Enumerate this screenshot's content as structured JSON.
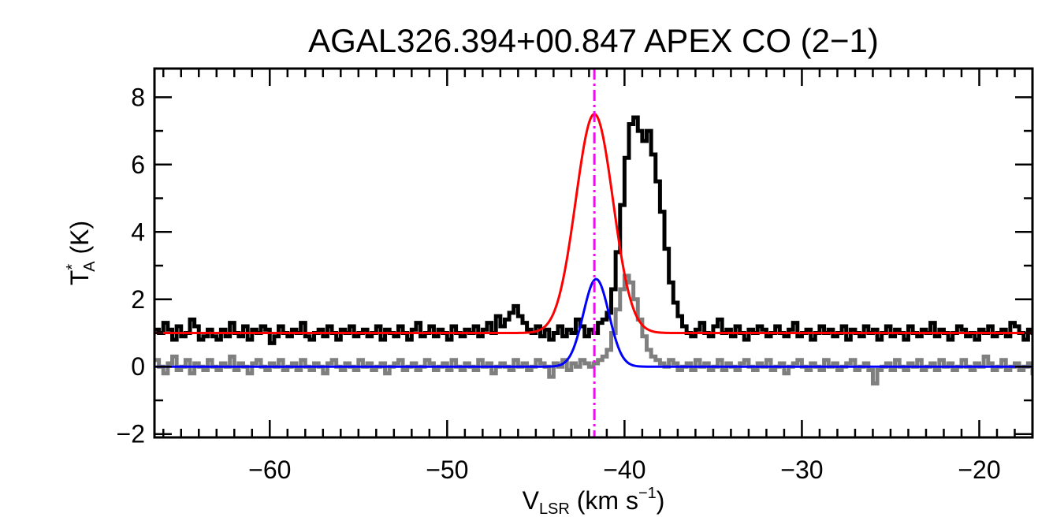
{
  "chart_data": {
    "type": "line",
    "title": "AGAL326.394+00.847  APEX CO (2−1)",
    "xlabel": {
      "main": "V",
      "sub": "LSR",
      "rest": " (km s",
      "sup": "−1",
      "end": ")"
    },
    "ylabel": {
      "main": "T",
      "sup": "*",
      "sub": "A",
      "rest": " (K)"
    },
    "xlim": [
      -66.5,
      -17
    ],
    "ylim": [
      -2.1,
      8.85
    ],
    "x_ticks": [
      -60,
      -50,
      -40,
      -30,
      -20
    ],
    "x_tick_labels": [
      "−60",
      "−50",
      "−40",
      "−30",
      "−20"
    ],
    "y_ticks": [
      -2,
      0,
      2,
      4,
      6,
      8
    ],
    "y_tick_labels": [
      "−2",
      "0",
      "2",
      "4",
      "6",
      "8"
    ],
    "x_minor_step": 1,
    "y_minor_step": 1,
    "grid": false,
    "channel_width": 0.25,
    "x_start": -66.5,
    "series": [
      {
        "style": "histogram",
        "color": "#000000",
        "values": [
          1.1,
          1.0,
          1.3,
          1.1,
          0.8,
          1.2,
          0.9,
          1.0,
          1.4,
          1.2,
          0.8,
          0.9,
          1.1,
          0.9,
          0.8,
          1.1,
          0.9,
          1.3,
          1.0,
          0.9,
          1.2,
          0.8,
          1.1,
          1.0,
          1.2,
          1.1,
          0.7,
          0.9,
          1.2,
          1.0,
          0.9,
          1.1,
          1.0,
          1.3,
          0.9,
          0.8,
          1.0,
          1.1,
          0.9,
          1.2,
          1.0,
          0.8,
          1.1,
          1.0,
          1.2,
          0.9,
          1.0,
          1.1,
          0.9,
          1.0,
          1.2,
          0.8,
          1.1,
          1.0,
          0.9,
          1.2,
          1.0,
          0.8,
          1.1,
          1.3,
          0.9,
          1.0,
          1.2,
          0.9,
          1.1,
          1.0,
          0.8,
          1.2,
          1.0,
          0.9,
          1.1,
          1.0,
          1.2,
          0.9,
          1.1,
          1.3,
          1.0,
          1.5,
          1.2,
          1.4,
          1.6,
          1.8,
          1.5,
          1.3,
          1.1,
          1.0,
          1.2,
          0.9,
          1.1,
          0.8,
          1.0,
          1.2,
          0.9,
          1.1,
          1.0,
          1.4,
          1.2,
          0.9,
          1.1,
          1.0,
          1.3,
          1.4,
          1.6,
          2.3,
          3.4,
          4.8,
          6.2,
          7.2,
          7.4,
          7.0,
          6.7,
          7.0,
          6.3,
          5.5,
          4.6,
          3.5,
          2.5,
          1.9,
          1.5,
          1.2,
          1.0,
          0.9,
          1.1,
          1.3,
          1.0,
          0.9,
          1.2,
          1.4,
          1.0,
          1.1,
          0.9,
          1.2,
          1.0,
          0.8,
          1.1,
          1.0,
          1.2,
          1.1,
          0.9,
          1.0,
          1.2,
          1.0,
          0.9,
          1.1,
          1.3,
          0.9,
          1.0,
          1.1,
          0.8,
          1.0,
          1.2,
          1.0,
          1.1,
          0.9,
          1.0,
          1.2,
          0.8,
          1.1,
          1.0,
          0.9,
          1.2,
          1.0,
          1.1,
          0.8,
          1.0,
          1.2,
          0.9,
          1.1,
          1.0,
          0.8,
          1.2,
          1.0,
          0.9,
          1.1,
          1.0,
          1.3,
          0.9,
          1.1,
          1.0,
          0.8,
          1.0,
          1.2,
          1.1,
          0.9,
          1.0,
          0.8,
          1.1,
          1.0,
          1.2,
          0.9,
          1.0,
          1.1,
          0.9,
          1.3,
          1.2,
          1.0,
          0.8,
          1.1,
          1.0,
          0.9,
          1.2,
          1.0,
          0.8
        ]
      },
      {
        "style": "histogram",
        "color": "#7f7f7f",
        "values": [
          0.2,
          0.0,
          -0.2,
          0.1,
          0.3,
          -0.1,
          0.0,
          0.2,
          -0.2,
          0.1,
          0.0,
          -0.1,
          0.2,
          0.0,
          -0.1,
          0.1,
          0.0,
          0.3,
          -0.1,
          0.1,
          0.0,
          -0.2,
          0.1,
          0.2,
          0.0,
          -0.1,
          0.1,
          0.0,
          0.2,
          -0.1,
          0.0,
          0.1,
          -0.1,
          0.2,
          0.0,
          -0.1,
          0.1,
          0.0,
          -0.2,
          0.1,
          0.2,
          0.0,
          -0.1,
          0.1,
          0.0,
          -0.1,
          0.2,
          0.0,
          0.1,
          -0.1,
          0.0,
          0.1,
          -0.2,
          0.0,
          0.1,
          0.2,
          -0.1,
          0.0,
          0.1,
          -0.1,
          0.0,
          0.2,
          0.1,
          -0.1,
          0.0,
          0.1,
          -0.1,
          0.2,
          0.0,
          -0.1,
          0.1,
          0.0,
          -0.1,
          0.2,
          0.0,
          0.1,
          -0.2,
          0.0,
          0.1,
          0.0,
          -0.1,
          0.2,
          0.0,
          0.1,
          -0.1,
          0.0,
          0.2,
          0.1,
          0.0,
          -0.3,
          0.1,
          0.0,
          0.2,
          -0.1,
          0.1,
          0.0,
          0.2,
          0.1,
          0.0,
          0.1,
          0.2,
          0.3,
          0.5,
          1.0,
          1.7,
          2.3,
          2.7,
          2.5,
          2.0,
          1.4,
          0.9,
          0.5,
          0.3,
          0.2,
          0.1,
          0.0,
          0.2,
          0.1,
          -0.1,
          0.0,
          0.1,
          -0.1,
          0.2,
          0.0,
          0.1,
          -0.1,
          0.0,
          0.2,
          -0.1,
          0.1,
          0.0,
          -0.1,
          0.1,
          0.2,
          0.0,
          -0.1,
          0.1,
          0.0,
          0.2,
          -0.1,
          0.0,
          0.1,
          -0.2,
          0.0,
          0.1,
          0.2,
          0.0,
          -0.1,
          0.1,
          0.0,
          -0.1,
          0.2,
          0.0,
          0.1,
          -0.1,
          0.0,
          0.1,
          0.2,
          -0.1,
          0.0,
          0.1,
          -0.1,
          -0.5,
          -0.1,
          0.0,
          0.1,
          -0.1,
          0.2,
          0.0,
          -0.1,
          0.1,
          0.0,
          0.2,
          -0.1,
          0.0,
          0.1,
          -0.1,
          0.2,
          0.0,
          0.1,
          -0.1,
          0.0,
          0.2,
          0.0,
          -0.1,
          0.1,
          0.0,
          0.3,
          0.1,
          -0.1,
          0.0,
          0.2,
          -0.1,
          0.0,
          0.1,
          -0.1,
          0.0,
          0.1,
          -0.2,
          0.0,
          0.1,
          -0.1
        ]
      },
      {
        "style": "gaussian",
        "color": "#ff0000",
        "baseline": 1.0,
        "amplitude": 6.5,
        "center": -41.7,
        "sigma": 1.05
      },
      {
        "style": "gaussian",
        "color": "#0000ff",
        "baseline": 0.0,
        "amplitude": 2.6,
        "center": -41.6,
        "sigma": 0.72
      }
    ],
    "annotations": [
      {
        "type": "vline",
        "x": -41.7,
        "color": "#ff00ff",
        "style": "dash-dot"
      }
    ]
  }
}
